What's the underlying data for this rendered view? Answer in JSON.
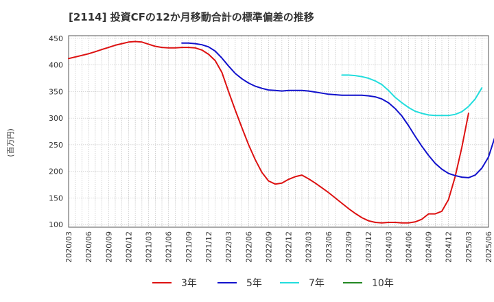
{
  "title": "[2114]  投資CFの12か月移動合計の標準偏差の推移",
  "y_unit": "(百万円)",
  "chart_data": {
    "type": "line",
    "title": "[2114]  投資CFの12か月移動合計の標準偏差の推移",
    "xlabel": "",
    "ylabel": "(百万円)",
    "ylim": [
      95,
      455
    ],
    "yticks": [
      100,
      150,
      200,
      250,
      300,
      350,
      400,
      450
    ],
    "grid": true,
    "legend_position": "bottom",
    "x_tick_labels": [
      "2020/03",
      "2020/06",
      "2020/09",
      "2020/12",
      "2021/03",
      "2021/06",
      "2021/09",
      "2021/12",
      "2022/03",
      "2022/06",
      "2022/09",
      "2022/12",
      "2023/03",
      "2023/06",
      "2023/09",
      "2023/12",
      "2024/03",
      "2024/06",
      "2024/09",
      "2024/12",
      "2025/03",
      "2025/06"
    ],
    "x_start": "2020/03",
    "series": [
      {
        "name": "3年",
        "color": "#dd1111",
        "start": "2020/03",
        "values": [
          412,
          415,
          418,
          421,
          425,
          429,
          433,
          437,
          440,
          443,
          444,
          443,
          439,
          435,
          433,
          432,
          432,
          433,
          433,
          432,
          428,
          420,
          408,
          386,
          350,
          315,
          282,
          250,
          222,
          198,
          182,
          176,
          178,
          185,
          190,
          193,
          186,
          178,
          169,
          160,
          150,
          140,
          130,
          121,
          113,
          107,
          104,
          103,
          104,
          104,
          103,
          103,
          105,
          110,
          120,
          120,
          125,
          147,
          190,
          245,
          309
        ]
      },
      {
        "name": "5年",
        "color": "#1111cc",
        "start": "2021/08",
        "values": [
          441,
          441,
          440,
          438,
          434,
          426,
          413,
          398,
          384,
          374,
          366,
          360,
          356,
          353,
          352,
          351,
          352,
          352,
          352,
          351,
          349,
          347,
          345,
          344,
          343,
          343,
          343,
          343,
          342,
          340,
          336,
          329,
          318,
          304,
          286,
          266,
          247,
          230,
          215,
          204,
          196,
          192,
          189,
          188,
          193,
          206,
          227,
          266
        ]
      },
      {
        "name": "7年",
        "color": "#22dddd",
        "start": "2023/08",
        "values": [
          381,
          381,
          380,
          378,
          375,
          370,
          363,
          352,
          339,
          329,
          320,
          313,
          309,
          306,
          305,
          305,
          305,
          307,
          312,
          322,
          336,
          357
        ]
      },
      {
        "name": "10年",
        "color": "#228822",
        "start": "2020/03",
        "values": []
      }
    ]
  }
}
